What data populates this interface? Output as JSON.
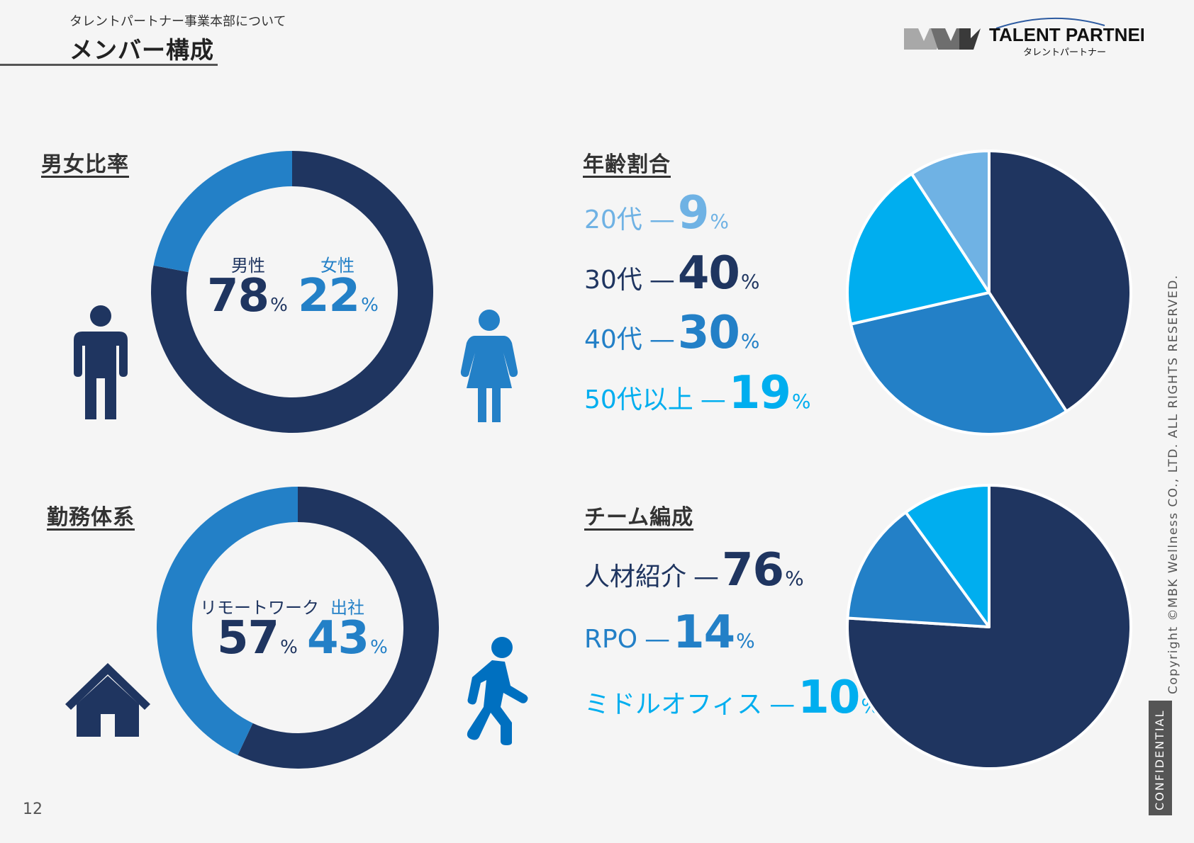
{
  "header": {
    "subtitle": "タレントパートナー事業本部について",
    "title": "メンバー構成",
    "logo_brand": "TALENT PARTNER",
    "logo_kana": "タレントパートナー"
  },
  "colors": {
    "navy": "#1f3560",
    "blue": "#2380c7",
    "cyan": "#00aeef",
    "light_blue": "#6fb2e4"
  },
  "icons": {
    "gender_left": "man-icon",
    "gender_right": "woman-icon",
    "work_left": "house-icon",
    "work_right": "walking-person-icon"
  },
  "gender": {
    "heading": "男女比率",
    "male_label": "男性",
    "male_value": "78",
    "female_label": "女性",
    "female_value": "22",
    "unit": "%"
  },
  "workstyle": {
    "heading": "勤務体系",
    "remote_label": "リモートワーク",
    "remote_value": "57",
    "office_label": "出社",
    "office_value": "43",
    "unit": "%"
  },
  "age": {
    "heading": "年齢割合",
    "rows": [
      {
        "label": "20代",
        "value": "9",
        "unit": "%"
      },
      {
        "label": "30代",
        "value": "40",
        "unit": "%"
      },
      {
        "label": "40代",
        "value": "30",
        "unit": "%"
      },
      {
        "label": "50代以上",
        "value": "19",
        "unit": "%"
      }
    ]
  },
  "team": {
    "heading": "チーム編成",
    "rows": [
      {
        "label": "人材紹介",
        "value": "76",
        "unit": "%"
      },
      {
        "label": "RPO",
        "value": "14",
        "unit": "%"
      },
      {
        "label": "ミドルオフィス",
        "value": "10",
        "unit": "%"
      }
    ]
  },
  "chart_data": [
    {
      "type": "pie",
      "variant": "donut",
      "categories": [
        "男性",
        "女性"
      ],
      "values": [
        78,
        22
      ],
      "colors": [
        "#1f3560",
        "#2380c7"
      ]
    },
    {
      "type": "pie",
      "variant": "donut",
      "categories": [
        "リモートワーク",
        "出社"
      ],
      "values": [
        57,
        43
      ],
      "colors": [
        "#1f3560",
        "#2380c7"
      ]
    },
    {
      "type": "pie",
      "categories": [
        "30代",
        "40代",
        "50代以上",
        "20代"
      ],
      "values": [
        40,
        30,
        19,
        9
      ],
      "colors": [
        "#1f3560",
        "#2380c7",
        "#00aeef",
        "#6fb2e4"
      ]
    },
    {
      "type": "pie",
      "categories": [
        "人材紹介",
        "RPO",
        "ミドルオフィス"
      ],
      "values": [
        76,
        14,
        10
      ],
      "colors": [
        "#1f3560",
        "#2380c7",
        "#00aeef"
      ]
    }
  ],
  "footer": {
    "copyright": "Copyright ©MBK Wellness CO., LTD. ALL RIGHTS RESERVED.",
    "confidential": "CONFIDENTIAL",
    "page": "12"
  }
}
